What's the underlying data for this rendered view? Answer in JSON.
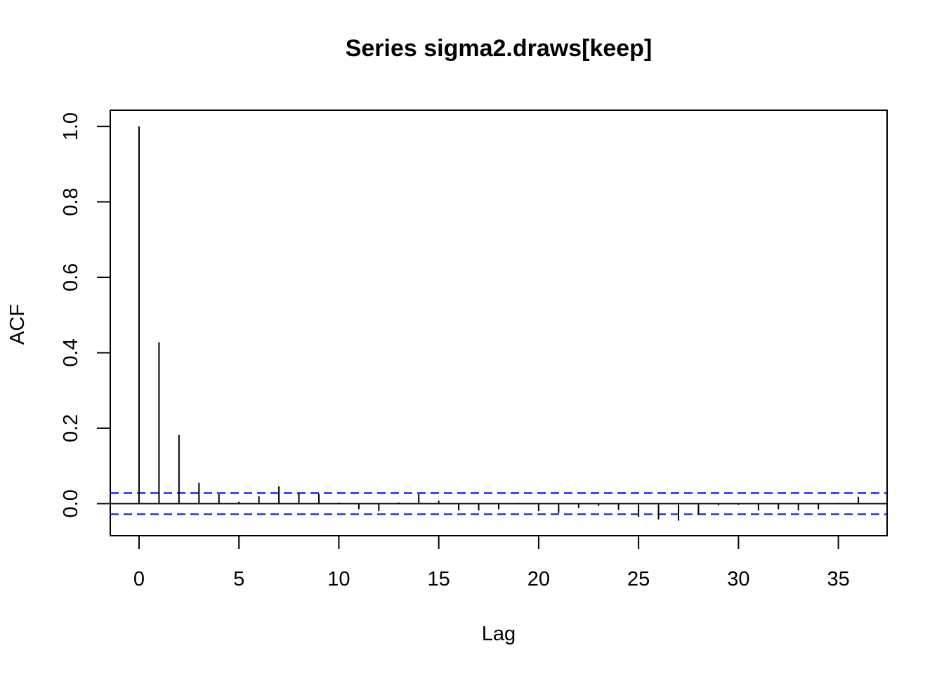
{
  "chart_data": {
    "type": "bar",
    "title": "Series  sigma2.draws[keep]",
    "xlabel": "Lag",
    "ylabel": "ACF",
    "xlim": [
      -1.44,
      37.44
    ],
    "ylim": [
      -0.085,
      1.043
    ],
    "xticks": [
      0,
      5,
      10,
      15,
      20,
      25,
      30,
      35
    ],
    "yticks": [
      0.0,
      0.2,
      0.4,
      0.6,
      0.8,
      1.0
    ],
    "xtick_labels": [
      "0",
      "5",
      "10",
      "15",
      "20",
      "25",
      "30",
      "35"
    ],
    "ytick_labels": [
      "0.0",
      "0.2",
      "0.4",
      "0.6",
      "0.8",
      "1.0"
    ],
    "confidence_bound": 0.028,
    "colors": {
      "bars": "#000000",
      "confidence": "#0000ff"
    },
    "lags": [
      0,
      1,
      2,
      3,
      4,
      5,
      6,
      7,
      8,
      9,
      10,
      11,
      12,
      13,
      14,
      15,
      16,
      17,
      18,
      19,
      20,
      21,
      22,
      23,
      24,
      25,
      26,
      27,
      28,
      29,
      30,
      31,
      32,
      33,
      34,
      35,
      36
    ],
    "acf": [
      1.0,
      0.428,
      0.182,
      0.055,
      0.025,
      0.005,
      0.02,
      0.046,
      0.028,
      0.026,
      0.003,
      -0.015,
      -0.02,
      0.003,
      0.025,
      0.008,
      -0.018,
      -0.018,
      -0.015,
      0.002,
      -0.02,
      -0.025,
      -0.012,
      -0.006,
      -0.017,
      -0.035,
      -0.042,
      -0.045,
      -0.03,
      -0.004,
      -0.003,
      -0.018,
      -0.015,
      -0.018,
      -0.015,
      0.002,
      0.018
    ]
  }
}
